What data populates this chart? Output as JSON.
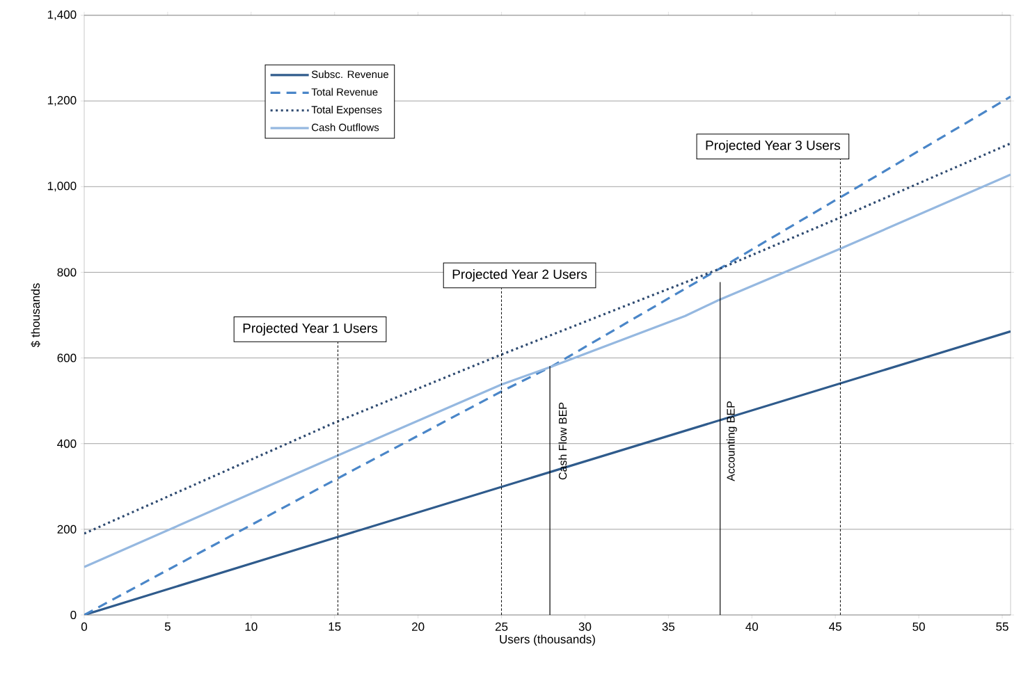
{
  "chart_data": {
    "type": "line",
    "xlabel": "Users (thousands)",
    "ylabel": "$ thousands",
    "xlim": [
      0,
      55.5
    ],
    "ylim": [
      0,
      1400
    ],
    "xticks": [
      0,
      5,
      10,
      15,
      20,
      25,
      30,
      35,
      40,
      45,
      50,
      55
    ],
    "yticks": [
      0,
      {
        "value": 200,
        "label": "200"
      },
      {
        "value": 400,
        "label": "400"
      },
      {
        "value": 600,
        "label": "600"
      },
      {
        "value": 800,
        "label": "800"
      },
      {
        "value": 1000,
        "label": "1,000"
      },
      {
        "value": 1200,
        "label": "1,200"
      },
      {
        "value": 1400,
        "label": "1,400"
      }
    ],
    "grid": "y",
    "legend": "top left",
    "marker": "none",
    "series": [
      {
        "name": "Subsc. Revenue",
        "color": "#2f5b8c",
        "line_style": "solid",
        "x": [
          0,
          15,
          55.5
        ],
        "values": [
          0,
          180,
          662
        ]
      },
      {
        "name": "Total Revenue",
        "color": "#4a86c8",
        "line_style": "dashed",
        "x": [
          0,
          15,
          25,
          28,
          38,
          55.5
        ],
        "values": [
          0,
          315,
          522,
          580,
          807,
          1210
        ]
      },
      {
        "name": "Total Expenses",
        "color": "#2e4a70",
        "line_style": "dotted",
        "x": [
          0,
          15,
          25,
          38,
          45.3,
          55.5
        ],
        "values": [
          190,
          449,
          608,
          807,
          928,
          1101
        ]
      },
      {
        "name": "Cash Outflows",
        "color": "#95b8e0",
        "line_style": "solid",
        "x": [
          0,
          15,
          25,
          28,
          36,
          38,
          45.3,
          55.5
        ],
        "values": [
          112,
          369,
          538,
          580,
          698,
          735,
          855,
          1028
        ]
      }
    ],
    "ref_lines": [
      {
        "axis": "x",
        "value": 15.2,
        "label": "Projected Year 1 Users",
        "line_style": "dashed",
        "color": "#000000"
      },
      {
        "axis": "x",
        "value": 25,
        "label": "Projected Year 2 Users",
        "line_style": "dashed",
        "color": "#000000"
      },
      {
        "axis": "x",
        "value": 45.3,
        "label": "Projected Year 3 Users",
        "line_style": "dashed",
        "color": "#000000"
      },
      {
        "axis": "x",
        "value": 27.9,
        "label": "Cash Flow BEP",
        "line_style": "solid",
        "color": "#000000"
      },
      {
        "axis": "x",
        "value": 38.1,
        "label": "Accounting BEP",
        "line_style": "solid",
        "color": "#000000"
      }
    ]
  }
}
